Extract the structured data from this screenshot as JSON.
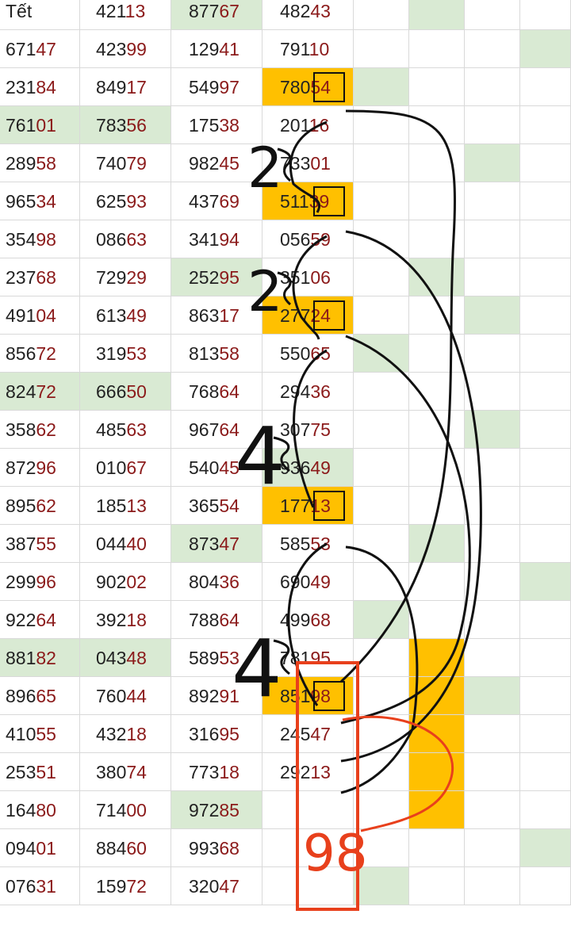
{
  "rows": [
    {
      "c0": {
        "a": "Tết",
        "b": ""
      },
      "c1": {
        "a": "421",
        "b": "13"
      },
      "c2": {
        "a": "877",
        "b": "67"
      },
      "c3": {
        "a": "482",
        "b": "43"
      }
    },
    {
      "c0": {
        "a": "671",
        "b": "47"
      },
      "c1": {
        "a": "423",
        "b": "99"
      },
      "c2": {
        "a": "129",
        "b": "41"
      },
      "c3": {
        "a": "791",
        "b": "10"
      }
    },
    {
      "c0": {
        "a": "231",
        "b": "84"
      },
      "c1": {
        "a": "849",
        "b": "17"
      },
      "c2": {
        "a": "549",
        "b": "97"
      },
      "c3": {
        "a": "780",
        "b": "54"
      }
    },
    {
      "c0": {
        "a": "761",
        "b": "01"
      },
      "c1": {
        "a": "783",
        "b": "56"
      },
      "c2": {
        "a": "175",
        "b": "38"
      },
      "c3": {
        "a": "201",
        "b": "16"
      }
    },
    {
      "c0": {
        "a": "289",
        "b": "58"
      },
      "c1": {
        "a": "740",
        "b": "79"
      },
      "c2": {
        "a": "982",
        "b": "45"
      },
      "c3": {
        "a": "733",
        "b": "01"
      }
    },
    {
      "c0": {
        "a": "965",
        "b": "34"
      },
      "c1": {
        "a": "625",
        "b": "93"
      },
      "c2": {
        "a": "437",
        "b": "69"
      },
      "c3": {
        "a": "511",
        "b": "39"
      }
    },
    {
      "c0": {
        "a": "354",
        "b": "98"
      },
      "c1": {
        "a": "086",
        "b": "63"
      },
      "c2": {
        "a": "341",
        "b": "94"
      },
      "c3": {
        "a": "056",
        "b": "59"
      }
    },
    {
      "c0": {
        "a": "237",
        "b": "68"
      },
      "c1": {
        "a": "729",
        "b": "29"
      },
      "c2": {
        "a": "252",
        "b": "95"
      },
      "c3": {
        "a": "351",
        "b": "06"
      }
    },
    {
      "c0": {
        "a": "491",
        "b": "04"
      },
      "c1": {
        "a": "613",
        "b": "49"
      },
      "c2": {
        "a": "863",
        "b": "17"
      },
      "c3": {
        "a": "277",
        "b": "24"
      }
    },
    {
      "c0": {
        "a": "856",
        "b": "72"
      },
      "c1": {
        "a": "319",
        "b": "53"
      },
      "c2": {
        "a": "813",
        "b": "58"
      },
      "c3": {
        "a": "550",
        "b": "65"
      }
    },
    {
      "c0": {
        "a": "824",
        "b": "72"
      },
      "c1": {
        "a": "666",
        "b": "50"
      },
      "c2": {
        "a": "768",
        "b": "64"
      },
      "c3": {
        "a": "294",
        "b": "36"
      }
    },
    {
      "c0": {
        "a": "358",
        "b": "62"
      },
      "c1": {
        "a": "485",
        "b": "63"
      },
      "c2": {
        "a": "967",
        "b": "64"
      },
      "c3": {
        "a": "307",
        "b": "75"
      }
    },
    {
      "c0": {
        "a": "872",
        "b": "96"
      },
      "c1": {
        "a": "010",
        "b": "67"
      },
      "c2": {
        "a": "540",
        "b": "45"
      },
      "c3": {
        "a": "936",
        "b": "49"
      }
    },
    {
      "c0": {
        "a": "895",
        "b": "62"
      },
      "c1": {
        "a": "185",
        "b": "13"
      },
      "c2": {
        "a": "365",
        "b": "54"
      },
      "c3": {
        "a": "177",
        "b": "13"
      }
    },
    {
      "c0": {
        "a": "387",
        "b": "55"
      },
      "c1": {
        "a": "044",
        "b": "40"
      },
      "c2": {
        "a": "873",
        "b": "47"
      },
      "c3": {
        "a": "585",
        "b": "53"
      }
    },
    {
      "c0": {
        "a": "299",
        "b": "96"
      },
      "c1": {
        "a": "902",
        "b": "02"
      },
      "c2": {
        "a": "804",
        "b": "36"
      },
      "c3": {
        "a": "690",
        "b": "49"
      }
    },
    {
      "c0": {
        "a": "922",
        "b": "64"
      },
      "c1": {
        "a": "392",
        "b": "18"
      },
      "c2": {
        "a": "788",
        "b": "64"
      },
      "c3": {
        "a": "499",
        "b": "68"
      }
    },
    {
      "c0": {
        "a": "881",
        "b": "82"
      },
      "c1": {
        "a": "043",
        "b": "48"
      },
      "c2": {
        "a": "589",
        "b": "53"
      },
      "c3": {
        "a": "781",
        "b": "95"
      }
    },
    {
      "c0": {
        "a": "896",
        "b": "65"
      },
      "c1": {
        "a": "760",
        "b": "44"
      },
      "c2": {
        "a": "892",
        "b": "91"
      },
      "c3": {
        "a": "851",
        "b": "98"
      }
    },
    {
      "c0": {
        "a": "410",
        "b": "55"
      },
      "c1": {
        "a": "432",
        "b": "18"
      },
      "c2": {
        "a": "316",
        "b": "95"
      },
      "c3": {
        "a": "245",
        "b": "47"
      }
    },
    {
      "c0": {
        "a": "253",
        "b": "51"
      },
      "c1": {
        "a": "380",
        "b": "74"
      },
      "c2": {
        "a": "773",
        "b": "18"
      },
      "c3": {
        "a": "292",
        "b": "13"
      }
    },
    {
      "c0": {
        "a": "164",
        "b": "80"
      },
      "c1": {
        "a": "714",
        "b": "00"
      },
      "c2": {
        "a": "972",
        "b": "85"
      },
      "c3": {
        "a": "",
        "b": ""
      }
    },
    {
      "c0": {
        "a": "094",
        "b": "01"
      },
      "c1": {
        "a": "884",
        "b": "60"
      },
      "c2": {
        "a": "993",
        "b": "68"
      },
      "c3": {
        "a": "",
        "b": ""
      }
    },
    {
      "c0": {
        "a": "076",
        "b": "31"
      },
      "c1": {
        "a": "159",
        "b": "72"
      },
      "c2": {
        "a": "320",
        "b": "47"
      },
      "c3": {
        "a": "",
        "b": ""
      }
    }
  ],
  "annotations": {
    "gap_top": "2",
    "gap_upper": "2",
    "gap_middle": "4",
    "gap_lower": "4",
    "prediction": "98"
  },
  "colors": {
    "accent_green": "#d9ead3",
    "highlight_orange": "#ffc000",
    "digit_red": "#8b1a1a",
    "ink_black": "#111111",
    "ink_red": "#e8401c"
  }
}
